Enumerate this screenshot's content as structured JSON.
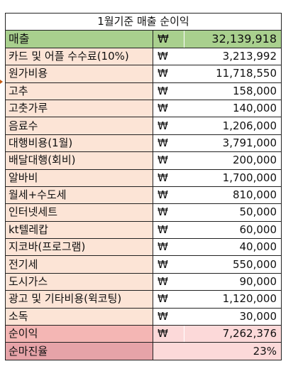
{
  "title": "1월기준 매출 순이익",
  "currency_symbol": "₩",
  "sales": {
    "label": "매출",
    "value": "32,139,918"
  },
  "items": [
    {
      "label": "카드 및 어플 수수료(10%)",
      "value": "3,213,992"
    },
    {
      "label": "원가비용",
      "value": "11,718,550"
    },
    {
      "label": "고추",
      "value": "158,000"
    },
    {
      "label": "고춧가루",
      "value": "140,000"
    },
    {
      "label": "음료수",
      "value": "1,206,000"
    },
    {
      "label": "대행비용(1월)",
      "value": "3,791,000"
    },
    {
      "label": "배달대행(회비)",
      "value": "200,000"
    },
    {
      "label": "알바비",
      "value": "1,700,000"
    },
    {
      "label": "월세+수도세",
      "value": "810,000"
    },
    {
      "label": "인터넷세트",
      "value": "50,000"
    },
    {
      "label": "kt텔레캅",
      "value": "60,000"
    },
    {
      "label": "지코바(프로그램)",
      "value": "40,000"
    },
    {
      "label": "전기세",
      "value": "550,000"
    },
    {
      "label": "도시가스",
      "value": "90,000"
    },
    {
      "label": "광고 및 기타비용(윅코팅)",
      "value": "1,120,000"
    },
    {
      "label": "소독",
      "value": "30,000"
    }
  ],
  "net_profit": {
    "label": "순이익",
    "value": "7,262,376"
  },
  "net_margin": {
    "label": "순마진율",
    "value": "23%"
  },
  "colors": {
    "sales_bg": "#a9d08e",
    "item_label_bg": "#fce4d6",
    "profit_label_bg": "#f4b6b4",
    "profit_value_bg": "#fcd9d9",
    "margin_label_bg": "#e6a3a8"
  }
}
